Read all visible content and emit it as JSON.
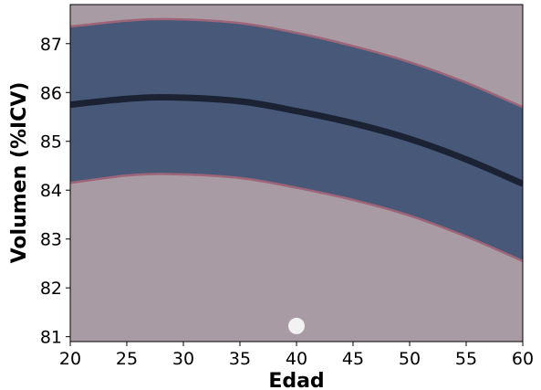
{
  "chart_data": {
    "type": "area",
    "title": "",
    "xlabel": "Edad",
    "ylabel": "Volumen (%ICV)",
    "xlim": [
      20,
      60
    ],
    "ylim": [
      80.9,
      87.8
    ],
    "xticks": [
      20,
      25,
      30,
      35,
      40,
      45,
      50,
      55,
      60
    ],
    "yticks": [
      81,
      82,
      83,
      84,
      85,
      86,
      87
    ],
    "grid": false,
    "legend": "none",
    "series": [
      {
        "type": "line",
        "x": [
          20,
          25,
          29,
          35,
          40,
          45,
          50,
          55,
          60
        ],
        "y": [
          85.75,
          85.87,
          85.9,
          85.82,
          85.62,
          85.37,
          85.05,
          84.63,
          84.13
        ]
      },
      {
        "type": "band",
        "x": [
          20,
          25,
          29,
          35,
          40,
          45,
          50,
          55,
          60
        ],
        "lower": [
          84.15,
          84.3,
          84.33,
          84.25,
          84.05,
          83.8,
          83.48,
          83.05,
          82.55
        ],
        "upper": [
          87.35,
          87.47,
          87.5,
          87.42,
          87.22,
          86.95,
          86.62,
          86.2,
          85.7
        ]
      },
      {
        "type": "scatter",
        "x": [
          40
        ],
        "y": [
          81.22
        ]
      }
    ],
    "colors": {
      "background": "#a89ba3",
      "band": "#475879",
      "band_edge": "#9d6577",
      "line": "#1a2233",
      "point": "#f2f2f2",
      "frame": "#000000"
    }
  }
}
